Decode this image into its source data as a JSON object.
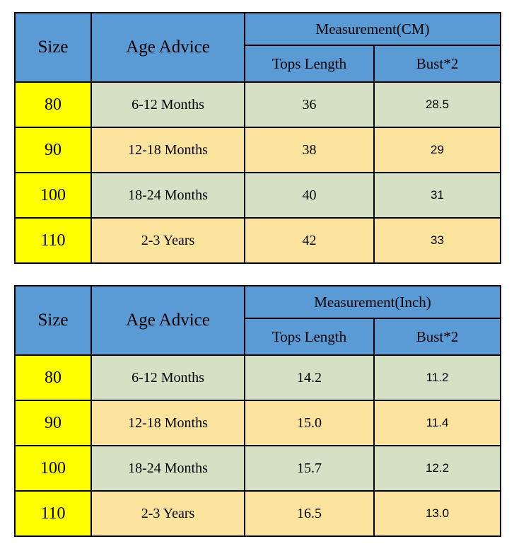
{
  "colors": {
    "header_blue": "#5B9BD5",
    "size_yellow": "#FFFF00",
    "row_green": "#D5E0C5",
    "row_tan": "#FCE49E",
    "border_black": "#000000",
    "text_black": "#000000",
    "page_background": "#FFFFFF"
  },
  "tables": [
    {
      "headers": {
        "size": "Size",
        "age": "Age Advice",
        "measurement": "Measurement(CM)",
        "tops_length": "Tops Length",
        "bust": "Bust*2"
      },
      "rows": [
        {
          "size": "80",
          "age": "6-12 Months",
          "tops_length": "36",
          "bust": "28.5"
        },
        {
          "size": "90",
          "age": "12-18 Months",
          "tops_length": "38",
          "bust": "29"
        },
        {
          "size": "100",
          "age": "18-24 Months",
          "tops_length": "40",
          "bust": "31"
        },
        {
          "size": "110",
          "age": "2-3 Years",
          "tops_length": "42",
          "bust": "33"
        }
      ]
    },
    {
      "headers": {
        "size": "Size",
        "age": "Age Advice",
        "measurement": "Measurement(Inch)",
        "tops_length": "Tops Length",
        "bust": "Bust*2"
      },
      "rows": [
        {
          "size": "80",
          "age": "6-12 Months",
          "tops_length": "14.2",
          "bust": "11.2"
        },
        {
          "size": "90",
          "age": "12-18 Months",
          "tops_length": "15.0",
          "bust": "11.4"
        },
        {
          "size": "100",
          "age": "18-24 Months",
          "tops_length": "15.7",
          "bust": "12.2"
        },
        {
          "size": "110",
          "age": "2-3 Years",
          "tops_length": "16.5",
          "bust": "13.0"
        }
      ]
    }
  ]
}
